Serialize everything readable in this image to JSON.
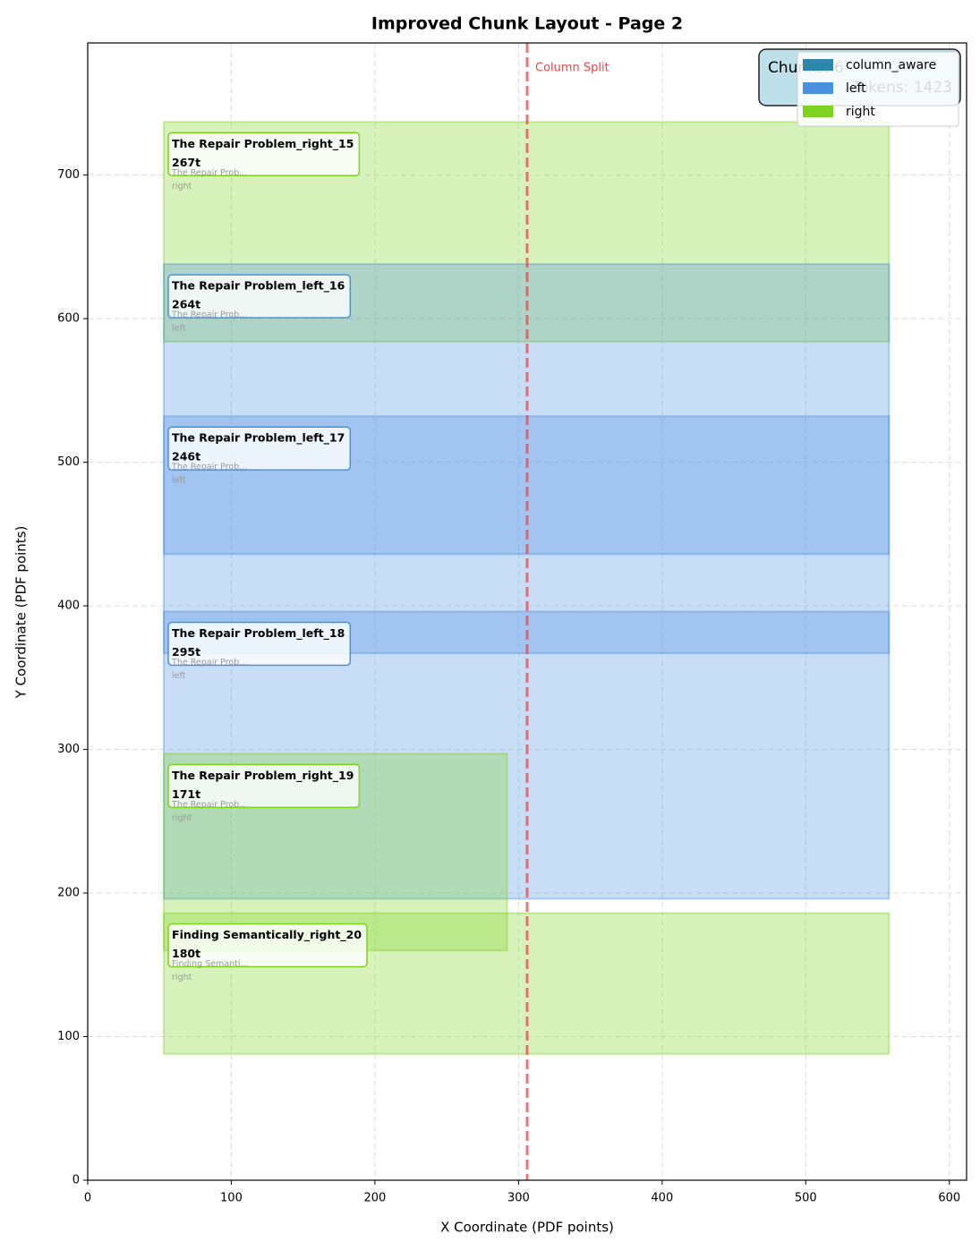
{
  "chart_data": {
    "type": "rect-layout",
    "title": "Improved Chunk Layout - Page 2",
    "x_label": "X Coordinate (PDF points)",
    "y_label": "Y Coordinate (PDF points)",
    "xlim": [
      0,
      612
    ],
    "ylim": [
      0,
      792
    ],
    "xticks": [
      0,
      100,
      200,
      300,
      400,
      500,
      600
    ],
    "yticks": [
      0,
      100,
      200,
      300,
      400,
      500,
      600,
      700
    ],
    "grid": true,
    "split": {
      "x": 306,
      "label": "Column Split",
      "color": "#e8474c"
    },
    "legend": [
      {
        "name": "column_aware",
        "color": "#2e86ab"
      },
      {
        "name": "left",
        "color": "#4a90e2"
      },
      {
        "name": "right",
        "color": "#7ed321"
      }
    ],
    "legend_position": "upper right",
    "info": [
      "Chunks: 6",
      "Tokens: 1423"
    ],
    "chunks": [
      {
        "name": "The Repair Problem_right_15",
        "tokens": "267t",
        "snippet": "The Repair Prob...",
        "column": "right",
        "x": [
          53,
          558
        ],
        "y": [
          584,
          737
        ]
      },
      {
        "name": "The Repair Problem_left_16",
        "tokens": "264t",
        "snippet": "The Repair Prob...",
        "column": "left",
        "x": [
          53,
          558
        ],
        "y": [
          367,
          638
        ]
      },
      {
        "name": "The Repair Problem_left_17",
        "tokens": "246t",
        "snippet": "The Repair Prob...",
        "column": "left",
        "x": [
          53,
          558
        ],
        "y": [
          436,
          532
        ]
      },
      {
        "name": "The Repair Problem_left_18",
        "tokens": "295t",
        "snippet": "The Repair Prob...",
        "column": "left",
        "x": [
          53,
          558
        ],
        "y": [
          196,
          396
        ]
      },
      {
        "name": "The Repair Problem_right_19",
        "tokens": "171t",
        "snippet": "The Repair Prob...",
        "column": "right",
        "x": [
          53,
          292
        ],
        "y": [
          160,
          297
        ]
      },
      {
        "name": "Finding Semantically_right_20",
        "tokens": "180t",
        "snippet": "Finding Semanti...",
        "column": "right",
        "x": [
          53,
          558
        ],
        "y": [
          88,
          186
        ]
      }
    ]
  }
}
